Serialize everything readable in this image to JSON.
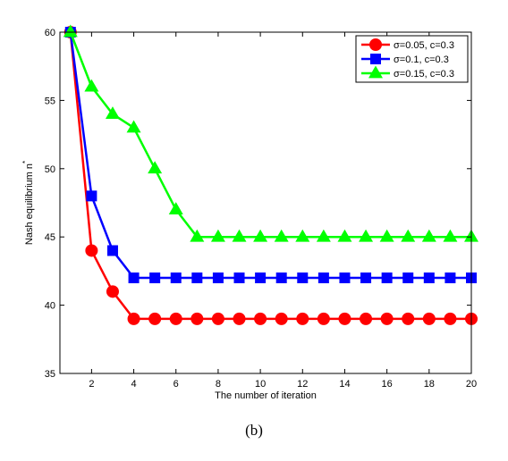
{
  "caption": "(b)",
  "chart_data": {
    "type": "line",
    "title": "",
    "xlabel": "The number of iteration",
    "ylabel": "Nash equilibrium n*",
    "ylabel_main": "Nash equilibrium n",
    "ylabel_sup": "*",
    "xlim": [
      0.5,
      20
    ],
    "ylim": [
      35,
      60
    ],
    "xticks": [
      2,
      4,
      6,
      8,
      10,
      12,
      14,
      16,
      18,
      20
    ],
    "yticks": [
      35,
      40,
      45,
      50,
      55,
      60
    ],
    "grid": false,
    "legend_position": "top-right",
    "x": [
      1,
      2,
      3,
      4,
      5,
      6,
      7,
      8,
      9,
      10,
      11,
      12,
      13,
      14,
      15,
      16,
      17,
      18,
      19,
      20
    ],
    "series": [
      {
        "name": "σ=0.05, c=0.3",
        "color": "#ff0000",
        "marker": "circle",
        "values": [
          60,
          44,
          41,
          39,
          39,
          39,
          39,
          39,
          39,
          39,
          39,
          39,
          39,
          39,
          39,
          39,
          39,
          39,
          39,
          39
        ]
      },
      {
        "name": "σ=0.1, c=0.3",
        "color": "#0000ff",
        "marker": "square",
        "values": [
          60,
          48,
          44,
          42,
          42,
          42,
          42,
          42,
          42,
          42,
          42,
          42,
          42,
          42,
          42,
          42,
          42,
          42,
          42,
          42
        ]
      },
      {
        "name": "σ=0.15, c=0.3",
        "color": "#00ff00",
        "marker": "triangle",
        "values": [
          60,
          56,
          54,
          53,
          50,
          47,
          45,
          45,
          45,
          45,
          45,
          45,
          45,
          45,
          45,
          45,
          45,
          45,
          45,
          45
        ]
      }
    ]
  }
}
